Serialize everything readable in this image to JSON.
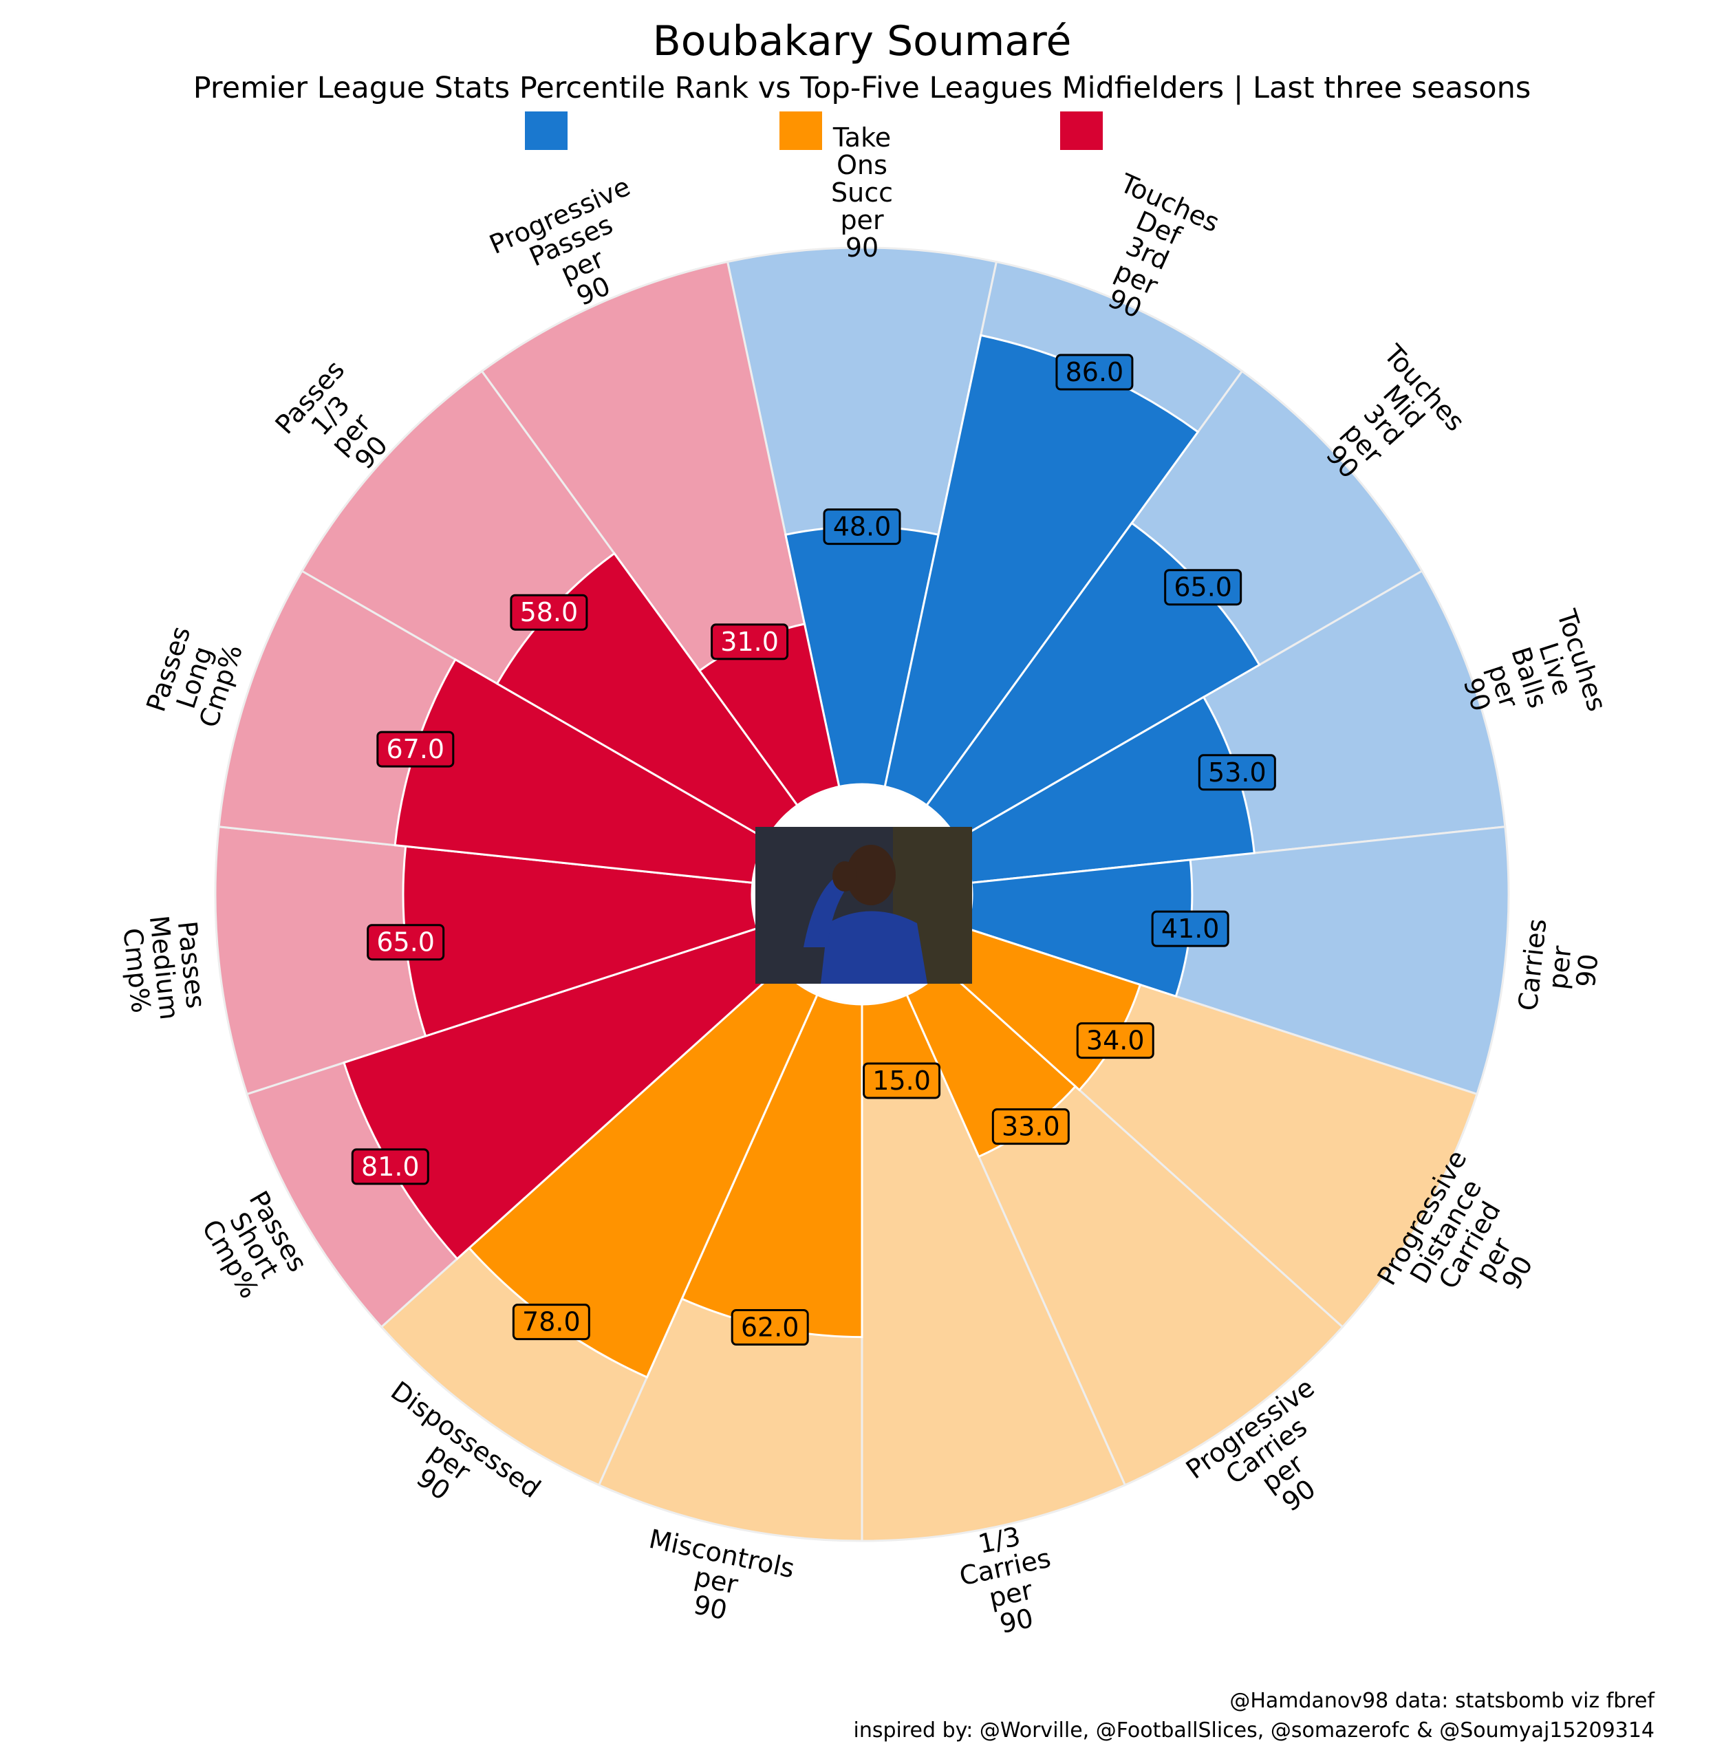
{
  "chart_data": {
    "type": "pizza",
    "title": "Boubakary Soumaré",
    "subtitle": "Premier League Stats Percentile Rank vs Top-Five Leagues Midfielders | Last three seasons",
    "legend": {
      "placement": "top",
      "entries": [
        {
          "name": "",
          "color": "#1A78CF"
        },
        {
          "name": "",
          "color": "#FF9300"
        },
        {
          "name": "",
          "color": "#D70232"
        }
      ]
    },
    "rlim": [
      0,
      100
    ],
    "colors": {
      "possession": {
        "main": "#1A78CF",
        "light": "#A5C8EC",
        "text": "#000000"
      },
      "carrying": {
        "main": "#FF9300",
        "light": "#FDD39B",
        "text": "#000000"
      },
      "passing": {
        "main": "#D70232",
        "light": "#EF9DAE",
        "text": "#FFFFFF"
      }
    },
    "params": [
      {
        "label": "Take\nOns\nSucc\nper\n90",
        "value": 48,
        "display": "48.0",
        "group": "possession"
      },
      {
        "label": "Touches\nDef\n3rd\nper\n90",
        "value": 86,
        "display": "86.0",
        "group": "possession"
      },
      {
        "label": "Touches\nMid\n3rd\nper\n90",
        "value": 65,
        "display": "65.0",
        "group": "possession"
      },
      {
        "label": "Tocuhes\nLive\nBalls\nper\n90",
        "value": 53,
        "display": "53.0",
        "group": "possession"
      },
      {
        "label": "Carries\nper\n90",
        "value": 41,
        "display": "41.0",
        "group": "possession"
      },
      {
        "label": "Progressive\nDistance\nCarried\nper\n90",
        "value": 34,
        "display": "34.0",
        "group": "carrying"
      },
      {
        "label": "Progressive\nCarries\nper\n90",
        "value": 33,
        "display": "33.0",
        "group": "carrying"
      },
      {
        "label": "1/3\nCarries\nper\n90",
        "value": 15,
        "display": "15.0",
        "group": "carrying"
      },
      {
        "label": "Miscontrols\nper\n90",
        "value": 62,
        "display": "62.0",
        "group": "carrying"
      },
      {
        "label": "Dispossessed\nper\n90",
        "value": 78,
        "display": "78.0",
        "group": "carrying"
      },
      {
        "label": "Passes\nShort\nCmp%",
        "value": 81,
        "display": "81.0",
        "group": "passing"
      },
      {
        "label": "Passes\nMedium\nCmp%",
        "value": 65,
        "display": "65.0",
        "group": "passing"
      },
      {
        "label": "Passes\nLong\nCmp%",
        "value": 67,
        "display": "67.0",
        "group": "passing"
      },
      {
        "label": "Passes\n1/3\nper\n90",
        "value": 58,
        "display": "58.0",
        "group": "passing"
      },
      {
        "label": "Progressive\nPasses\nper\n90",
        "value": 31,
        "display": "31.0",
        "group": "passing"
      }
    ]
  },
  "credits": {
    "line1": "@Hamdanov98 data: statsbomb viz fbref",
    "line2": "inspired by: @Worville, @FootballSlices, @somazerofc & @Soumyaj15209314"
  },
  "center_image": "player-photo"
}
